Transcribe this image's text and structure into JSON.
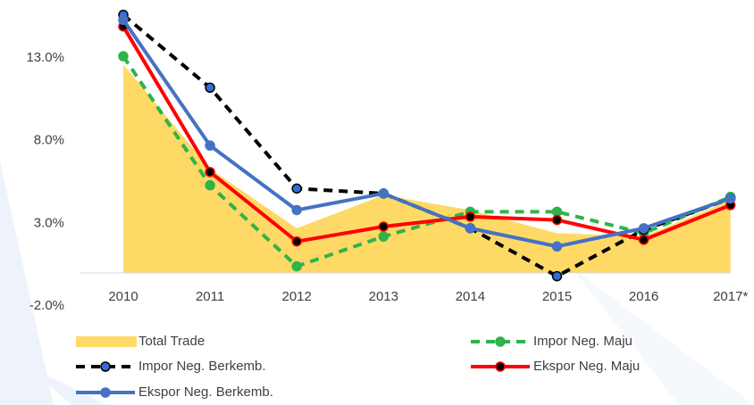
{
  "chart_data": {
    "type": "line",
    "categories": [
      "2010",
      "2011",
      "2012",
      "2013",
      "2014",
      "2015",
      "2016",
      "2017*"
    ],
    "ylim": [
      -2,
      16.5
    ],
    "yticks": [
      {
        "value": -2,
        "label": "-2.0%"
      },
      {
        "value": 3,
        "label": "3.0%"
      },
      {
        "value": 8,
        "label": "8.0%"
      },
      {
        "value": 13,
        "label": "13.0%"
      }
    ],
    "series": [
      {
        "name": "Total Trade",
        "color": "#ffd966",
        "style": "area",
        "values": [
          12.6,
          6.3,
          2.7,
          4.7,
          3.8,
          2.4,
          2.2,
          4.4
        ]
      },
      {
        "name": "Impor Neg. Maju",
        "color": "#2fb34a",
        "style": "dashed",
        "values": [
          13.1,
          5.3,
          0.4,
          2.2,
          3.7,
          3.7,
          2.4,
          4.6
        ]
      },
      {
        "name": "Impor Neg. Berkemb.",
        "color": "#000000",
        "marker_color": "#2f6fd6",
        "style": "dashed",
        "values": [
          15.6,
          11.2,
          5.1,
          4.8,
          2.7,
          -0.2,
          2.6,
          4.5
        ]
      },
      {
        "name": "Ekspor Neg. Maju",
        "color": "#ff0000",
        "marker_color": "#000000",
        "style": "solid",
        "values": [
          14.9,
          6.1,
          1.9,
          2.8,
          3.4,
          3.2,
          2.0,
          4.1
        ]
      },
      {
        "name": "Ekspor Neg. Berkemb.",
        "color": "#4472c4",
        "style": "solid",
        "values": [
          15.3,
          7.7,
          3.8,
          4.8,
          2.7,
          1.6,
          2.7,
          4.5
        ]
      }
    ]
  }
}
